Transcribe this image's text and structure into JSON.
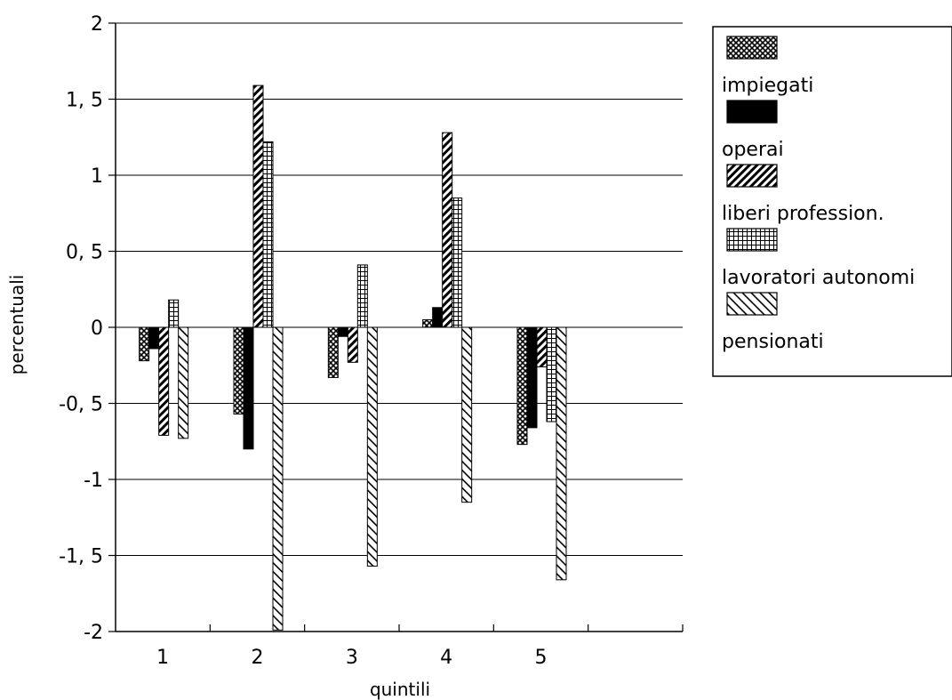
{
  "chart_data": {
    "type": "bar",
    "title": "",
    "xlabel": "quintili",
    "ylabel": "percentuali",
    "ylim": [
      -2,
      2
    ],
    "yticks": [
      2,
      1.5,
      1,
      0.5,
      0,
      -0.5,
      -1,
      -1.5,
      -2
    ],
    "ytick_labels": [
      "2",
      "1, 5",
      "1",
      "0, 5",
      "0",
      "-0, 5",
      "-1",
      "-1, 5",
      "-2"
    ],
    "categories": [
      "1",
      "2",
      "3",
      "4",
      "5"
    ],
    "grid": true,
    "legend_position": "right",
    "series": [
      {
        "name": "impiegati",
        "pattern": "crosshatch",
        "values": [
          -0.22,
          -0.57,
          -0.33,
          0.05,
          -0.77
        ]
      },
      {
        "name": "operai",
        "pattern": "solid",
        "values": [
          -0.14,
          -0.8,
          -0.06,
          0.13,
          -0.66
        ]
      },
      {
        "name": "liberi profession.",
        "pattern": "diagonal-dense",
        "values": [
          -0.71,
          1.59,
          -0.23,
          1.28,
          -0.26
        ]
      },
      {
        "name": "lavoratori autonomi",
        "pattern": "grid",
        "values": [
          0.18,
          1.22,
          0.41,
          0.85,
          -0.62
        ]
      },
      {
        "name": "pensionati",
        "pattern": "diagonal",
        "values": [
          -0.73,
          -1.99,
          -1.57,
          -1.15,
          -1.66
        ]
      }
    ]
  }
}
